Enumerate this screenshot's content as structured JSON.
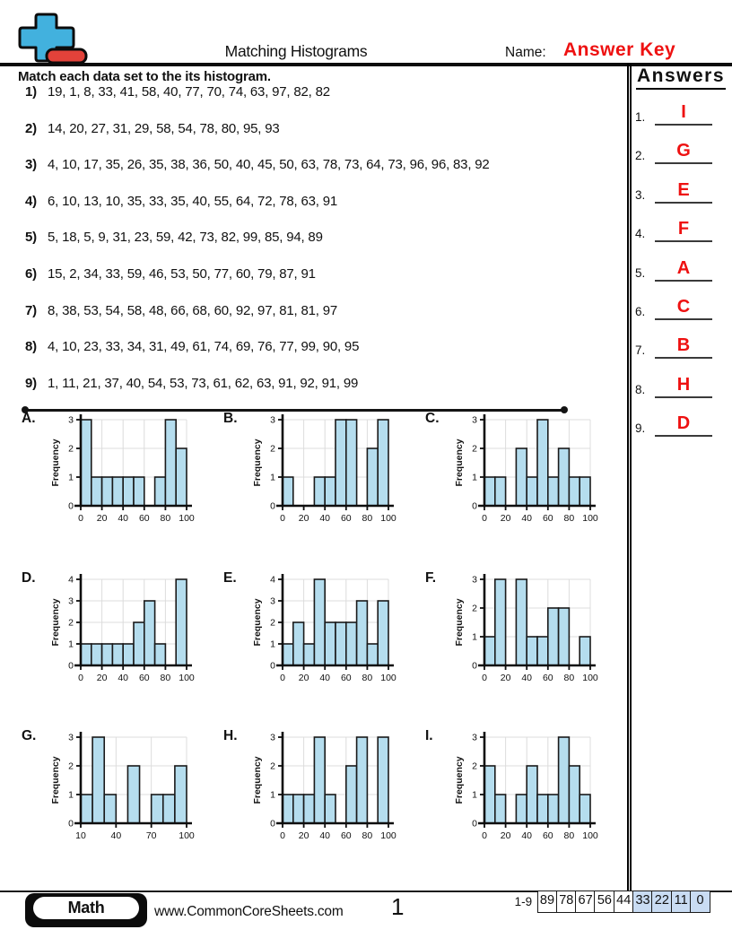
{
  "header": {
    "title": "Matching Histograms",
    "name_label": "Name:",
    "name_value": "Answer Key"
  },
  "instruction": "Match each data set to the its histogram.",
  "questions": [
    {
      "num": "1)",
      "values": "19, 1, 8, 33, 41, 58, 40, 77, 70, 74, 63, 97, 82, 82"
    },
    {
      "num": "2)",
      "values": "14, 20, 27, 31, 29, 58, 54, 78, 80, 95, 93"
    },
    {
      "num": "3)",
      "values": "4, 10, 17, 35, 26, 35, 38, 36, 50, 40, 45, 50, 63, 78, 73, 64, 73, 96, 96, 83, 92"
    },
    {
      "num": "4)",
      "values": "6, 10, 13, 10, 35, 33, 35, 40, 55, 64, 72, 78, 63, 91"
    },
    {
      "num": "5)",
      "values": "5, 18, 5, 9, 31, 23, 59, 42, 73, 82, 99, 85, 94, 89"
    },
    {
      "num": "6)",
      "values": "15, 2, 34, 33, 59, 46, 53, 50, 77, 60, 79, 87, 91"
    },
    {
      "num": "7)",
      "values": "8, 38, 53, 54, 58, 48, 66, 68, 60, 92, 97, 81, 81, 97"
    },
    {
      "num": "8)",
      "values": "4, 10, 23, 33, 34, 31, 49, 61, 74, 69, 76, 77, 99, 90, 95"
    },
    {
      "num": "9)",
      "values": "1, 11, 21, 37, 40, 54, 53, 73, 61, 62, 63, 91, 92, 91, 99"
    }
  ],
  "answers_panel": {
    "title": "Answers",
    "items": [
      {
        "num": "1.",
        "answer": "I"
      },
      {
        "num": "2.",
        "answer": "G"
      },
      {
        "num": "3.",
        "answer": "E"
      },
      {
        "num": "4.",
        "answer": "F"
      },
      {
        "num": "5.",
        "answer": "A"
      },
      {
        "num": "6.",
        "answer": "C"
      },
      {
        "num": "7.",
        "answer": "B"
      },
      {
        "num": "8.",
        "answer": "H"
      },
      {
        "num": "9.",
        "answer": "D"
      }
    ]
  },
  "chart_style": {
    "bar_fill": "#b5ddee",
    "bar_stroke": "#1a1a1a",
    "grid_color": "#dcdcdc",
    "axis_color": "#0e0e0e",
    "answer_red": "#ee1111"
  },
  "chart_data": [
    {
      "type": "histogram",
      "label": "A.",
      "ylabel": "Frequency",
      "x_range": [
        0,
        100
      ],
      "bin_width": 10,
      "x_ticks": [
        0,
        20,
        40,
        60,
        80,
        100
      ],
      "ylim": [
        0,
        3
      ],
      "frequencies": [
        3,
        1,
        1,
        1,
        1,
        1,
        0,
        1,
        3,
        2
      ]
    },
    {
      "type": "histogram",
      "label": "B.",
      "ylabel": "Frequency",
      "x_range": [
        0,
        100
      ],
      "bin_width": 10,
      "x_ticks": [
        0,
        20,
        40,
        60,
        80,
        100
      ],
      "ylim": [
        0,
        3
      ],
      "frequencies": [
        1,
        0,
        0,
        1,
        1,
        3,
        3,
        0,
        2,
        3
      ]
    },
    {
      "type": "histogram",
      "label": "C.",
      "ylabel": "Frequency",
      "x_range": [
        0,
        100
      ],
      "bin_width": 10,
      "x_ticks": [
        0,
        20,
        40,
        60,
        80,
        100
      ],
      "ylim": [
        0,
        3
      ],
      "frequencies": [
        1,
        1,
        0,
        2,
        1,
        3,
        1,
        2,
        1,
        1
      ]
    },
    {
      "type": "histogram",
      "label": "D.",
      "ylabel": "Frequency",
      "x_range": [
        0,
        100
      ],
      "bin_width": 10,
      "x_ticks": [
        0,
        20,
        40,
        60,
        80,
        100
      ],
      "ylim": [
        0,
        4
      ],
      "frequencies": [
        1,
        1,
        1,
        1,
        1,
        2,
        3,
        1,
        0,
        4
      ]
    },
    {
      "type": "histogram",
      "label": "E.",
      "ylabel": "Frequency",
      "x_range": [
        0,
        100
      ],
      "bin_width": 10,
      "x_ticks": [
        0,
        20,
        40,
        60,
        80,
        100
      ],
      "ylim": [
        0,
        4
      ],
      "frequencies": [
        1,
        2,
        1,
        4,
        2,
        2,
        2,
        3,
        1,
        3
      ]
    },
    {
      "type": "histogram",
      "label": "F.",
      "ylabel": "Frequency",
      "x_range": [
        0,
        100
      ],
      "bin_width": 10,
      "x_ticks": [
        0,
        20,
        40,
        60,
        80,
        100
      ],
      "ylim": [
        0,
        3
      ],
      "frequencies": [
        1,
        3,
        0,
        3,
        1,
        1,
        2,
        2,
        0,
        1
      ]
    },
    {
      "type": "histogram",
      "label": "G.",
      "ylabel": "Frequency",
      "x_range": [
        10,
        100
      ],
      "bin_width": 10,
      "x_ticks": [
        10,
        40,
        70,
        100
      ],
      "ylim": [
        0,
        3
      ],
      "frequencies": [
        1,
        3,
        1,
        0,
        2,
        0,
        1,
        1,
        2
      ]
    },
    {
      "type": "histogram",
      "label": "H.",
      "ylabel": "Frequency",
      "x_range": [
        0,
        100
      ],
      "bin_width": 10,
      "x_ticks": [
        0,
        20,
        40,
        60,
        80,
        100
      ],
      "ylim": [
        0,
        3
      ],
      "frequencies": [
        1,
        1,
        1,
        3,
        1,
        0,
        2,
        3,
        0,
        3
      ]
    },
    {
      "type": "histogram",
      "label": "I.",
      "ylabel": "Frequency",
      "x_range": [
        0,
        100
      ],
      "bin_width": 10,
      "x_ticks": [
        0,
        20,
        40,
        60,
        80,
        100
      ],
      "ylim": [
        0,
        3
      ],
      "frequencies": [
        2,
        1,
        0,
        1,
        2,
        1,
        1,
        3,
        2,
        1
      ]
    }
  ],
  "footer": {
    "brand": "Math",
    "website": "www.CommonCoreSheets.com",
    "page": "1",
    "score_label": "1-9",
    "score_cells": [
      {
        "value": "89",
        "highlight": false
      },
      {
        "value": "78",
        "highlight": false
      },
      {
        "value": "67",
        "highlight": false
      },
      {
        "value": "56",
        "highlight": false
      },
      {
        "value": "44",
        "highlight": false
      },
      {
        "value": "33",
        "highlight": true
      },
      {
        "value": "22",
        "highlight": true
      },
      {
        "value": "11",
        "highlight": true
      },
      {
        "value": "0",
        "highlight": true
      }
    ],
    "score_highlight_color": "#c9dcf3"
  },
  "logo_colors": {
    "plus_blue": "#42b1de",
    "minus_red": "#e2423a",
    "outline": "#0c0c0c"
  }
}
